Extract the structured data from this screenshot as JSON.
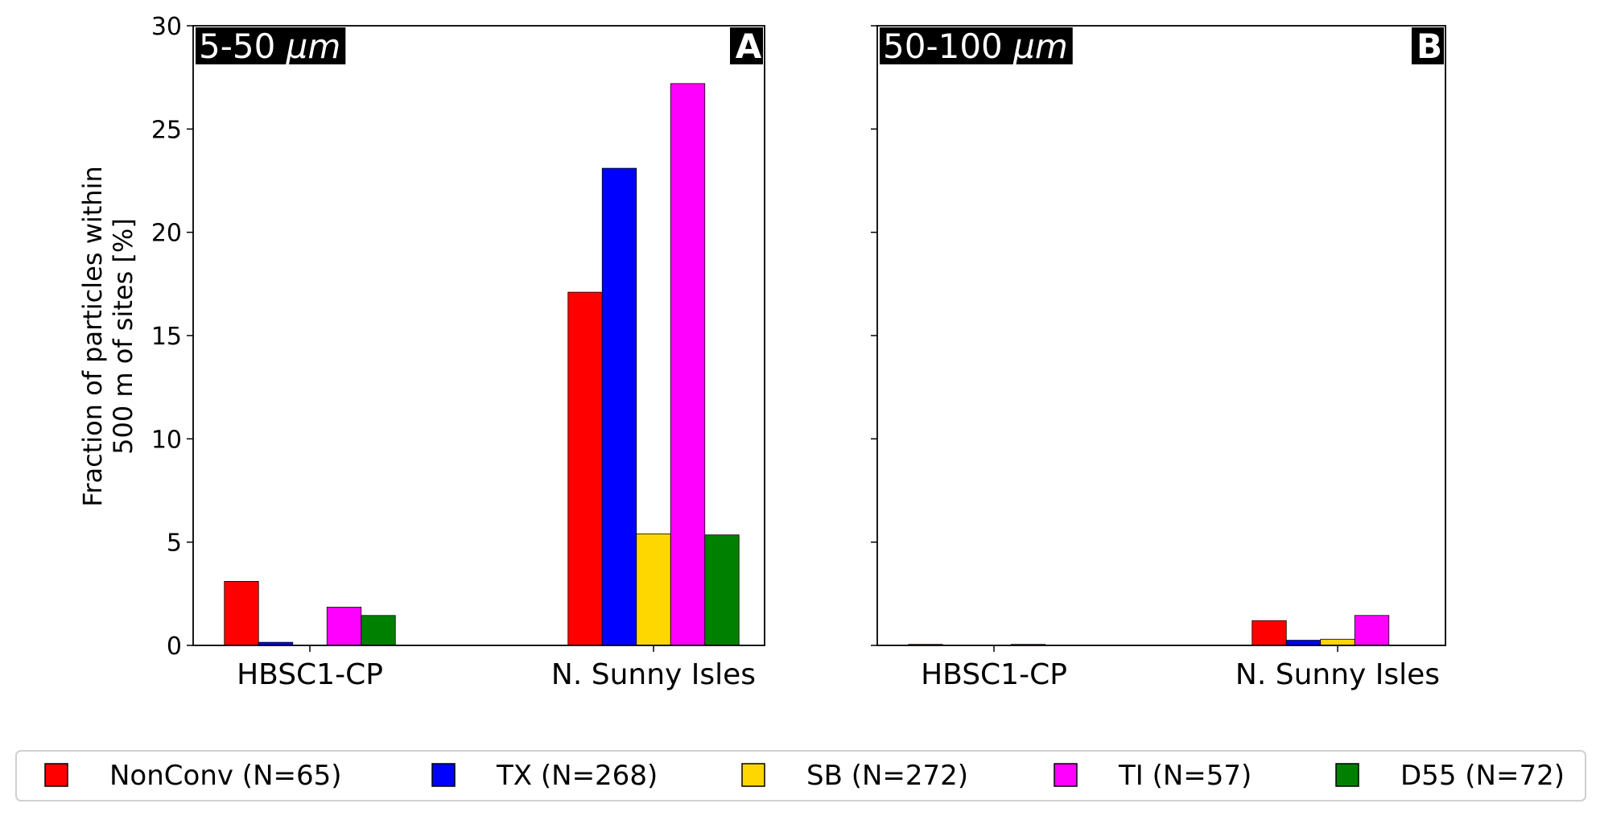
{
  "chart_data": [
    {
      "type": "bar",
      "panel_label": "A",
      "size_range": "5-50",
      "unit": "μm",
      "categories": [
        "HBSC1-CP",
        "N. Sunny Isles"
      ],
      "series": [
        {
          "name": "NonConv (N=65)",
          "color": "#ff0000",
          "values": [
            3.1,
            17.1
          ]
        },
        {
          "name": "TX (N=268)",
          "color": "#0000ff",
          "values": [
            0.15,
            23.1
          ]
        },
        {
          "name": "SB (N=272)",
          "color": "#ffd700",
          "values": [
            0.0,
            5.4
          ]
        },
        {
          "name": "TI (N=57)",
          "color": "#ff00ff",
          "values": [
            1.85,
            27.2
          ]
        },
        {
          "name": "D55 (N=72)",
          "color": "#008000",
          "values": [
            1.45,
            5.35
          ]
        }
      ],
      "ylabel_line1": "Fraction of particles within",
      "ylabel_line2": "500 m of sites [%]",
      "ylim": [
        0,
        30
      ],
      "yticks": [
        "0",
        "5",
        "10",
        "15",
        "20",
        "25",
        "30"
      ]
    },
    {
      "type": "bar",
      "panel_label": "B",
      "size_range": "50-100",
      "unit": "μm",
      "categories": [
        "HBSC1-CP",
        "N. Sunny Isles"
      ],
      "series": [
        {
          "name": "NonConv (N=65)",
          "color": "#ff0000",
          "values": [
            0.05,
            1.2
          ]
        },
        {
          "name": "TX (N=268)",
          "color": "#0000ff",
          "values": [
            0.0,
            0.25
          ]
        },
        {
          "name": "SB (N=272)",
          "color": "#ffd700",
          "values": [
            0.0,
            0.3
          ]
        },
        {
          "name": "TI (N=57)",
          "color": "#ff00ff",
          "values": [
            0.05,
            1.45
          ]
        },
        {
          "name": "D55 (N=72)",
          "color": "#008000",
          "values": [
            0.0,
            0.0
          ]
        }
      ],
      "ylim": [
        0,
        30
      ]
    }
  ],
  "legend": {
    "placement": "bottom",
    "entries": [
      {
        "label": "NonConv (N=65)",
        "color": "#ff0000"
      },
      {
        "label": "TX (N=268)",
        "color": "#0000ff"
      },
      {
        "label": "SB (N=272)",
        "color": "#ffd700"
      },
      {
        "label": "TI (N=57)",
        "color": "#ff00ff"
      },
      {
        "label": "D55 (N=72)",
        "color": "#008000"
      }
    ]
  }
}
